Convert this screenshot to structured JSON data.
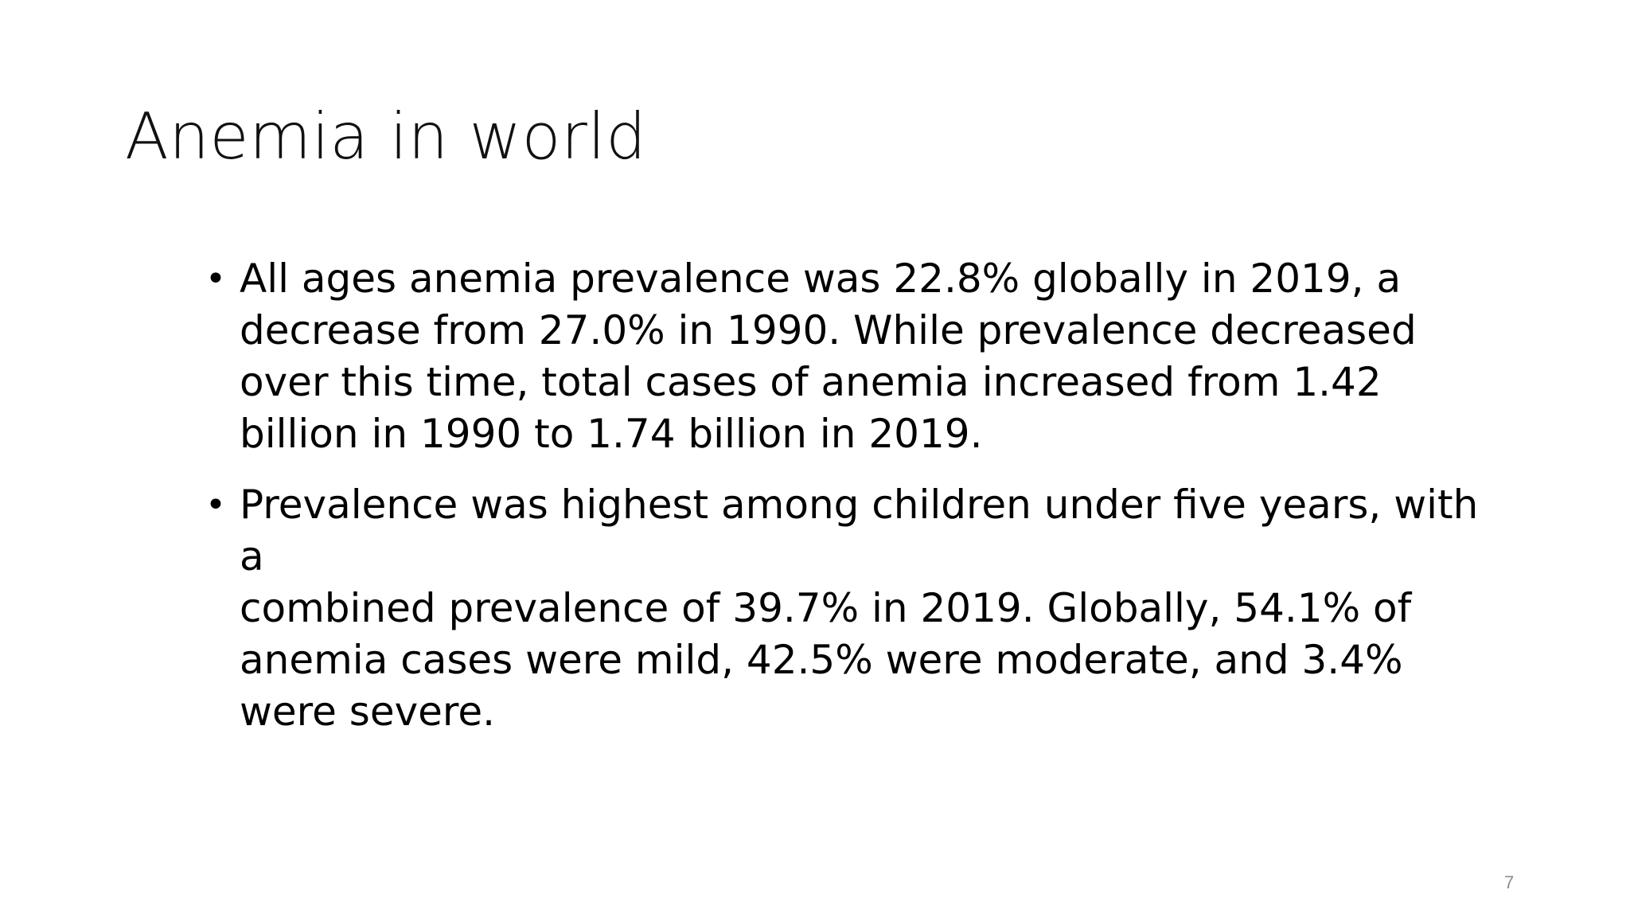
{
  "slide": {
    "title": "Anemia in world",
    "bullets": [
      {
        "text": "All ages anemia prevalence was 22.8%  globally in 2019, a\ndecrease from 27.0%  in 1990. While prevalence decreased\nover this time, total cases of anemia increased from 1.42\nbillion in 1990 to 1.74 billion in 2019."
      },
      {
        "text": "Prevalence was highest among children under five years, with a\ncombined prevalence of 39.7%  in 2019. Globally, 54.1%  of\nanemia cases were mild, 42.5%  were moderate, and 3.4%\nwere severe."
      }
    ],
    "bullet_glyph": "•",
    "page_number": "7"
  }
}
